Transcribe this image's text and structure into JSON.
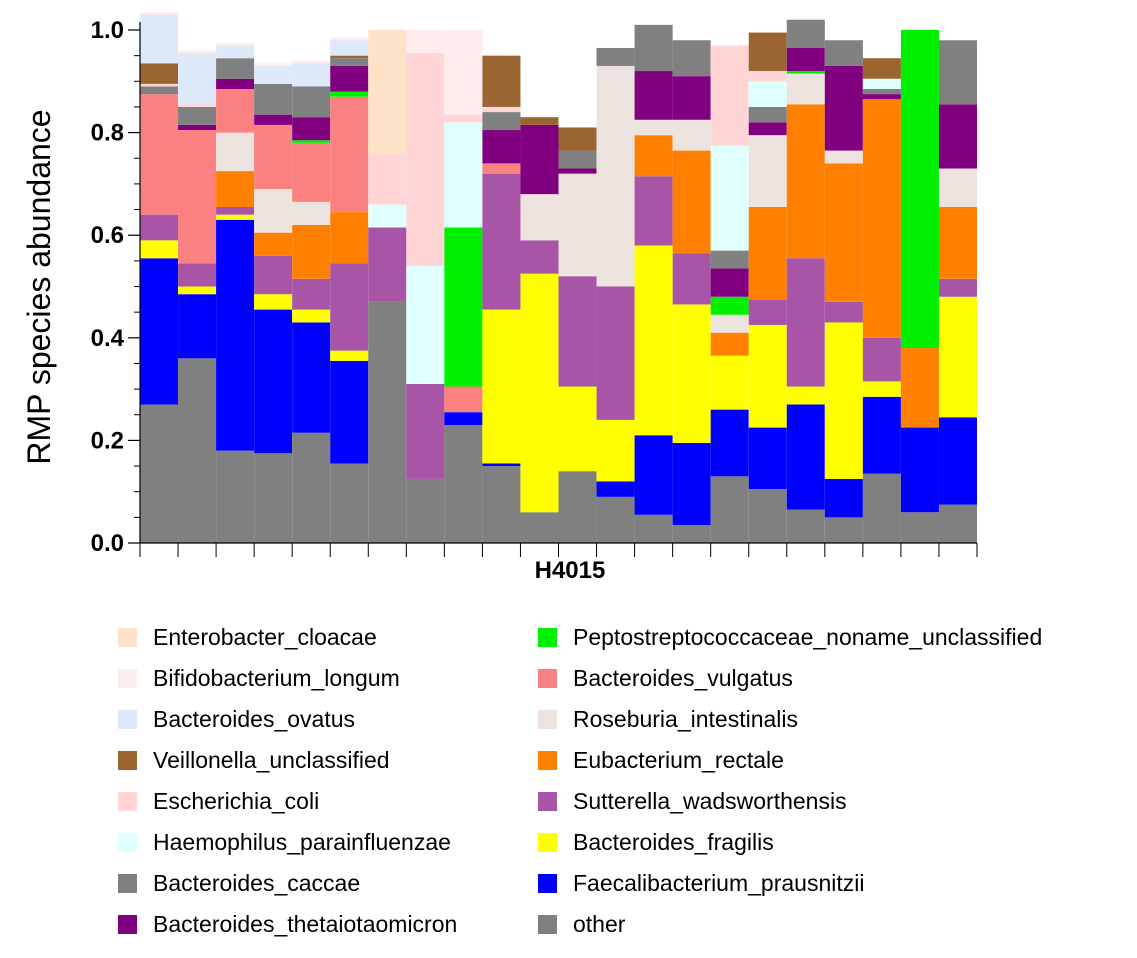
{
  "chart_data": {
    "type": "bar",
    "stacked": true,
    "ylabel": "RMP species abundance",
    "xlabel": "H4015",
    "ylim": [
      0,
      1.0
    ],
    "yticks": [
      "0.0",
      "0.2",
      "0.4",
      "0.6",
      "0.8",
      "1.0"
    ],
    "grid": false,
    "legend_position": "bottom",
    "series": [
      {
        "name": "other",
        "color": "#808080",
        "values": [
          0.27,
          0.36,
          0.18,
          0.175,
          0.215,
          0.155,
          0.47,
          0.125,
          0.23,
          0.15,
          0.06,
          0.14,
          0.09,
          0.055,
          0.035,
          0.13,
          0.105,
          0.065,
          0.05,
          0.135,
          0.06,
          0.075
        ]
      },
      {
        "name": "Faecalibacterium_prausnitzii",
        "color": "#0000ff",
        "values": [
          0.285,
          0.125,
          0.45,
          0.28,
          0.215,
          0.2,
          0,
          0,
          0.025,
          0.005,
          0,
          0,
          0.03,
          0.155,
          0.16,
          0.13,
          0.12,
          0.205,
          0.075,
          0.15,
          0.165,
          0.17
        ]
      },
      {
        "name": "Bacteroides_fragilis",
        "color": "#ffff00",
        "values": [
          0.035,
          0.015,
          0.01,
          0.03,
          0.025,
          0.02,
          0,
          0,
          0,
          0.3,
          0.465,
          0.165,
          0.12,
          0.37,
          0.27,
          0.105,
          0.2,
          0.035,
          0.305,
          0.03,
          0,
          0.235
        ]
      },
      {
        "name": "Sutterella_wadsworthensis",
        "color": "#a855a8",
        "values": [
          0.05,
          0.045,
          0.015,
          0.075,
          0.06,
          0.17,
          0.145,
          0.185,
          0,
          0.265,
          0.065,
          0.215,
          0.26,
          0.135,
          0.1,
          0,
          0.05,
          0.25,
          0.04,
          0.085,
          0,
          0.035
        ]
      },
      {
        "name": "Eubacterium_rectale",
        "color": "#ff8000",
        "values": [
          0,
          0,
          0.07,
          0.045,
          0.105,
          0.1,
          0,
          0,
          0,
          0,
          0,
          0,
          0,
          0.08,
          0.2,
          0.045,
          0.18,
          0.3,
          0.27,
          0.465,
          0.155,
          0.14
        ]
      },
      {
        "name": "Roseburia_intestinalis",
        "color": "#ede3de",
        "values": [
          0,
          0,
          0.075,
          0.085,
          0.045,
          0,
          0,
          0,
          0,
          0,
          0.09,
          0.2,
          0.43,
          0.03,
          0.06,
          0.035,
          0.14,
          0.06,
          0.025,
          0,
          0,
          0.075
        ]
      },
      {
        "name": "Bacteroides_vulgatus",
        "color": "#fb8080",
        "values": [
          0.235,
          0.26,
          0.085,
          0.125,
          0.115,
          0.225,
          0,
          0,
          0.05,
          0.02,
          0,
          0,
          0,
          0,
          0,
          0,
          0,
          0,
          0,
          0,
          0,
          0
        ]
      },
      {
        "name": "Peptostreptococcaceae_noname_unclassified",
        "color": "#00f000",
        "values": [
          0,
          0,
          0,
          0,
          0.005,
          0.01,
          0,
          0,
          0.31,
          0,
          0,
          0,
          0,
          0,
          0,
          0.035,
          0,
          0.005,
          0,
          0,
          0.62,
          0
        ]
      },
      {
        "name": "Bacteroides_thetaiotaomicron",
        "color": "#800080",
        "values": [
          0,
          0.01,
          0.02,
          0.02,
          0.045,
          0.05,
          0,
          0,
          0,
          0.065,
          0.135,
          0.01,
          0,
          0.095,
          0.085,
          0.055,
          0.025,
          0.045,
          0.165,
          0.01,
          0,
          0.125
        ]
      },
      {
        "name": "Bacteroides_caccae",
        "color": "#808080",
        "values": [
          0.015,
          0.035,
          0.04,
          0.06,
          0.06,
          0.015,
          0,
          0,
          0,
          0.035,
          0,
          0.035,
          0.035,
          0.09,
          0.07,
          0.035,
          0.03,
          0.055,
          0.05,
          0.01,
          0,
          0.125
        ]
      },
      {
        "name": "Haemophilus_parainfluenzae",
        "color": "#e0ffff",
        "values": [
          0,
          0,
          0,
          0,
          0,
          0,
          0.045,
          0.23,
          0.205,
          0,
          0,
          0,
          0,
          0,
          0,
          0.205,
          0.05,
          0,
          0,
          0.02,
          0,
          0
        ]
      },
      {
        "name": "Escherichia_coli",
        "color": "#ffd5d5",
        "values": [
          0.005,
          0.005,
          0,
          0,
          0,
          0,
          0.1,
          0.415,
          0.015,
          0.01,
          0,
          0,
          0,
          0,
          0,
          0.195,
          0.02,
          0,
          0,
          0,
          0,
          0
        ]
      },
      {
        "name": "Veillonella_unclassified",
        "color": "#9b6532",
        "values": [
          0.04,
          0,
          0,
          0,
          0,
          0.005,
          0,
          0,
          0,
          0.1,
          0.015,
          0.045,
          0,
          0,
          0,
          0,
          0.075,
          0,
          0,
          0.04,
          0,
          0
        ]
      },
      {
        "name": "Bacteroides_ovatus",
        "color": "#dde9f9",
        "values": [
          0.095,
          0.1,
          0.025,
          0.035,
          0.045,
          0.03,
          0,
          0,
          0,
          0,
          0,
          0,
          0,
          0,
          0,
          0,
          0,
          0,
          0,
          0,
          0,
          0
        ]
      },
      {
        "name": "Bifidobacterium_longum",
        "color": "#ffeded",
        "values": [
          0.005,
          0.005,
          0.005,
          0.005,
          0.005,
          0.005,
          0,
          0.045,
          0.165,
          0,
          0,
          0,
          0,
          0,
          0,
          0,
          0,
          0,
          0,
          0,
          0,
          0
        ]
      },
      {
        "name": "Enterobacter_cloacae",
        "color": "#fde2c8",
        "values": [
          0,
          0,
          0,
          0,
          0,
          0,
          0.24,
          0,
          0,
          0,
          0,
          0,
          0,
          0,
          0,
          0,
          0,
          0,
          0,
          0,
          0,
          0
        ]
      }
    ],
    "legend": [
      {
        "name": "Enterobacter_cloacae",
        "color": "#fde2c8"
      },
      {
        "name": "Bifidobacterium_longum",
        "color": "#ffeded"
      },
      {
        "name": "Bacteroides_ovatus",
        "color": "#dde9f9"
      },
      {
        "name": "Veillonella_unclassified",
        "color": "#9b6532"
      },
      {
        "name": "Escherichia_coli",
        "color": "#ffd5d5"
      },
      {
        "name": "Haemophilus_parainfluenzae",
        "color": "#e0ffff"
      },
      {
        "name": "Bacteroides_caccae",
        "color": "#808080"
      },
      {
        "name": "Bacteroides_thetaiotaomicron",
        "color": "#800080"
      },
      {
        "name": "Peptostreptococcaceae_noname_unclassified",
        "color": "#00f000"
      },
      {
        "name": "Bacteroides_vulgatus",
        "color": "#fb8080"
      },
      {
        "name": "Roseburia_intestinalis",
        "color": "#ede3de"
      },
      {
        "name": "Eubacterium_rectale",
        "color": "#ff8000"
      },
      {
        "name": "Sutterella_wadsworthensis",
        "color": "#a855a8"
      },
      {
        "name": "Bacteroides_fragilis",
        "color": "#ffff00"
      },
      {
        "name": "Faecalibacterium_prausnitzii",
        "color": "#0000ff"
      },
      {
        "name": "other",
        "color": "#808080"
      }
    ]
  }
}
